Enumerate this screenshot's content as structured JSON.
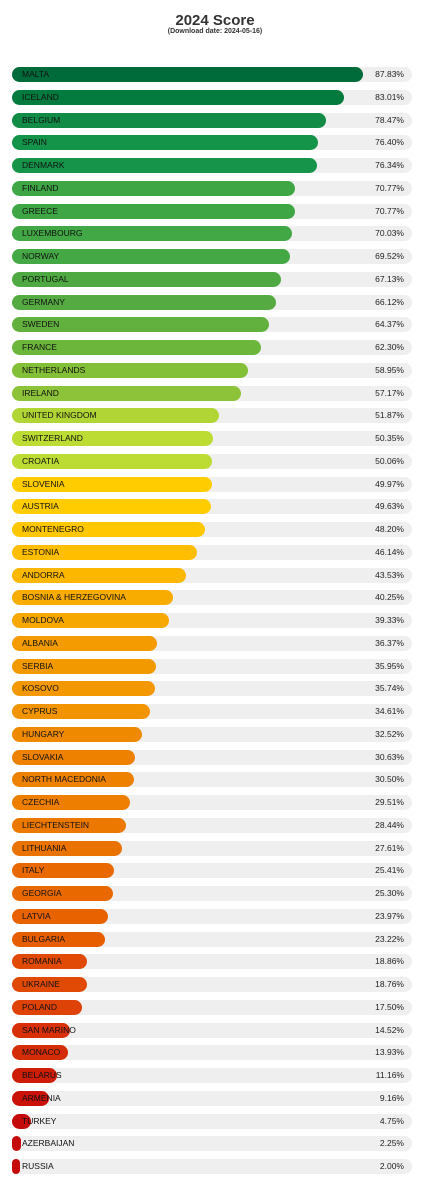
{
  "chart_data": {
    "type": "bar",
    "orientation": "horizontal",
    "title": "2024 Score",
    "subtitle": "(Download date: 2024-05-16)",
    "xlim": [
      0,
      100
    ],
    "categories": [
      "MALTA",
      "ICELAND",
      "BELGIUM",
      "SPAIN",
      "DENMARK",
      "FINLAND",
      "GREECE",
      "LUXEMBOURG",
      "NORWAY",
      "PORTUGAL",
      "GERMANY",
      "SWEDEN",
      "FRANCE",
      "NETHERLANDS",
      "IRELAND",
      "UNITED KINGDOM",
      "SWITZERLAND",
      "CROATIA",
      "SLOVENIA",
      "AUSTRIA",
      "MONTENEGRO",
      "ESTONIA",
      "ANDORRA",
      "BOSNIA & HERZEGOVINA",
      "MOLDOVA",
      "ALBANIA",
      "SERBIA",
      "KOSOVO",
      "CYPRUS",
      "HUNGARY",
      "SLOVAKIA",
      "NORTH MACEDONIA",
      "CZECHIA",
      "LIECHTENSTEIN",
      "LITHUANIA",
      "ITALY",
      "GEORGIA",
      "LATVIA",
      "BULGARIA",
      "ROMANIA",
      "UKRAINE",
      "POLAND",
      "SAN MARINO",
      "MONACO",
      "BELARUS",
      "ARMENIA",
      "TURKEY",
      "AZERBAIJAN",
      "RUSSIA"
    ],
    "values": [
      87.83,
      83.01,
      78.47,
      76.4,
      76.34,
      70.77,
      70.77,
      70.03,
      69.52,
      67.13,
      66.12,
      64.37,
      62.3,
      58.95,
      57.17,
      51.87,
      50.35,
      50.06,
      49.97,
      49.63,
      48.2,
      46.14,
      43.53,
      40.25,
      39.33,
      36.37,
      35.95,
      35.74,
      34.61,
      32.52,
      30.63,
      30.5,
      29.51,
      28.44,
      27.61,
      25.41,
      25.3,
      23.97,
      23.22,
      18.86,
      18.76,
      17.5,
      14.52,
      13.93,
      11.16,
      9.16,
      4.75,
      2.25,
      2.0
    ],
    "value_labels": [
      "87.83%",
      "83.01%",
      "78.47%",
      "76.40%",
      "76.34%",
      "70.77%",
      "70.77%",
      "70.03%",
      "69.52%",
      "67.13%",
      "66.12%",
      "64.37%",
      "62.30%",
      "58.95%",
      "57.17%",
      "51.87%",
      "50.35%",
      "50.06%",
      "49.97%",
      "49.63%",
      "48.20%",
      "46.14%",
      "43.53%",
      "40.25%",
      "39.33%",
      "36.37%",
      "35.95%",
      "35.74%",
      "34.61%",
      "32.52%",
      "30.63%",
      "30.50%",
      "29.51%",
      "28.44%",
      "27.61%",
      "25.41%",
      "25.30%",
      "23.97%",
      "23.22%",
      "18.86%",
      "18.76%",
      "17.50%",
      "14.52%",
      "13.93%",
      "11.16%",
      "9.16%",
      "4.75%",
      "2.25%",
      "2.00%"
    ],
    "grid": false,
    "legend": "none",
    "colors": [
      "#006b3a",
      "#037a3e",
      "#118b45",
      "#139449",
      "#16944a",
      "#3ea644",
      "#3ea644",
      "#42a745",
      "#44a845",
      "#4ea942",
      "#55ab42",
      "#62b13f",
      "#6cb63c",
      "#84bf38",
      "#8cc338",
      "#b0d534",
      "#bcdb33",
      "#bcdb33",
      "#ffcc00",
      "#ffcc00",
      "#ffc700",
      "#ffbf00",
      "#fcb800",
      "#f9ac00",
      "#f6a800",
      "#f39b00",
      "#f39900",
      "#f39800",
      "#f29400",
      "#ef8a00",
      "#ee8200",
      "#ee8200",
      "#ee7e00",
      "#ec7800",
      "#ea7300",
      "#e96900",
      "#e96900",
      "#e86200",
      "#e65e00",
      "#e14a05",
      "#e14a05",
      "#df4206",
      "#d83008",
      "#d52d08",
      "#cf1e08",
      "#cb1208",
      "#c40a0a",
      "#c40a0a",
      "#c40a0a"
    ]
  }
}
